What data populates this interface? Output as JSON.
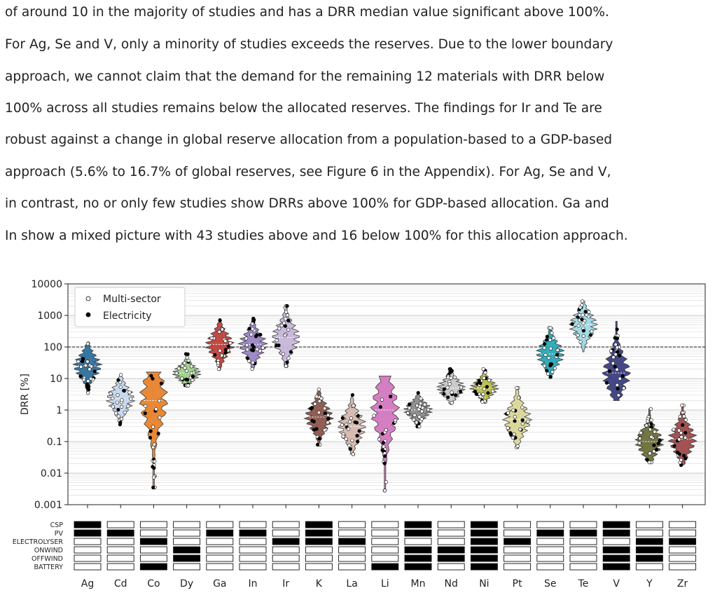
{
  "paragraph": [
    "of around 10 in the majority of studies and has a DRR median value significant above 100%.",
    "For Ag, Se and V, only a minority of studies exceeds the reserves. Due to the lower boundary",
    "approach, we cannot claim that the demand for the remaining 12 materials with DRR below",
    "100% across all studies remains below the allocated reserves. The findings for Ir and Te are",
    "robust against a change in global reserve allocation from a population-based to a GDP-based",
    "approach (5.6% to 16.7% of global reserves, see Figure 6 in the Appendix). For Ag, Se and V,",
    "in contrast, no or only few studies show DRRs above 100% for GDP-based allocation. Ga and",
    "In show a mixed picture with 43 studies above and 16 below 100% for this allocation approach."
  ],
  "chart_data": {
    "type": "violin",
    "ylabel": "DRR [%]",
    "yscale": "log",
    "ylim": [
      0.001,
      10000
    ],
    "yticks": [
      "0.001",
      "0.01",
      "0.1",
      "1",
      "10",
      "100",
      "1000",
      "10000"
    ],
    "reference_line": 100,
    "legend": {
      "position": "top-left",
      "entries": [
        "Multi-sector",
        "Electricity"
      ]
    },
    "categories": [
      "Ag",
      "Cd",
      "Co",
      "Dy",
      "Ga",
      "In",
      "Ir",
      "K",
      "La",
      "Li",
      "Mn",
      "Nd",
      "Ni",
      "Pt",
      "Se",
      "Te",
      "V",
      "Y",
      "Zr"
    ],
    "colors": [
      "#2f6f9e",
      "#c6d8ef",
      "#e8822c",
      "#9fcf8a",
      "#c0413b",
      "#9a85c4",
      "#c7b6d9",
      "#8c564b",
      "#d6b9ad",
      "#d378c0",
      "#8c8c8c",
      "#c9c9c9",
      "#bcbd4f",
      "#dad699",
      "#2aa9b8",
      "#9edae5",
      "#3b3f7f",
      "#6b6e3a",
      "#9e4a4a"
    ],
    "violins": [
      {
        "min": 3.5,
        "max": 130,
        "median": 25
      },
      {
        "min": 0.35,
        "max": 13,
        "median": 2.3
      },
      {
        "min": 0.0035,
        "max": 16,
        "median": 2
      },
      {
        "min": 6,
        "max": 60,
        "median": 15
      },
      {
        "min": 20,
        "max": 800,
        "median": 120
      },
      {
        "min": 20,
        "max": 800,
        "median": 120
      },
      {
        "min": 25,
        "max": 2000,
        "median": 200
      },
      {
        "min": 0.08,
        "max": 4.5,
        "median": 0.6
      },
      {
        "min": 0.04,
        "max": 3,
        "median": 0.3
      },
      {
        "min": 0.0028,
        "max": 12,
        "median": 1
      },
      {
        "min": 0.3,
        "max": 3.5,
        "median": 1
      },
      {
        "min": 1.5,
        "max": 20,
        "median": 5
      },
      {
        "min": 1.8,
        "max": 20,
        "median": 5
      },
      {
        "min": 0.06,
        "max": 5,
        "median": 0.5
      },
      {
        "min": 10,
        "max": 400,
        "median": 60
      },
      {
        "min": 70,
        "max": 2800,
        "median": 500
      },
      {
        "min": 2,
        "max": 650,
        "median": 15
      },
      {
        "min": 0.022,
        "max": 1.1,
        "median": 0.1
      },
      {
        "min": 0.018,
        "max": 1.4,
        "median": 0.12
      }
    ],
    "technology_rows": [
      "CSP",
      "PV",
      "ELECTROLYSER",
      "ONWIND",
      "OFFWIND",
      "BATTERY"
    ],
    "technology_matrix": [
      [
        1,
        0,
        0,
        0,
        0,
        0,
        0,
        1,
        0,
        0,
        1,
        0,
        1,
        0,
        0,
        0,
        1,
        0,
        0
      ],
      [
        1,
        1,
        0,
        0,
        1,
        1,
        0,
        1,
        0,
        0,
        1,
        0,
        1,
        0,
        1,
        1,
        1,
        0,
        0
      ],
      [
        0,
        0,
        1,
        0,
        0,
        0,
        1,
        1,
        1,
        0,
        0,
        0,
        1,
        1,
        0,
        0,
        0,
        1,
        1
      ],
      [
        0,
        0,
        0,
        1,
        0,
        0,
        0,
        0,
        0,
        0,
        1,
        1,
        1,
        0,
        0,
        0,
        1,
        1,
        0
      ],
      [
        0,
        0,
        0,
        1,
        0,
        0,
        0,
        0,
        0,
        0,
        1,
        1,
        1,
        0,
        0,
        0,
        1,
        1,
        0
      ],
      [
        0,
        0,
        1,
        0,
        0,
        0,
        0,
        0,
        0,
        1,
        1,
        0,
        1,
        0,
        0,
        0,
        1,
        0,
        0
      ]
    ]
  }
}
